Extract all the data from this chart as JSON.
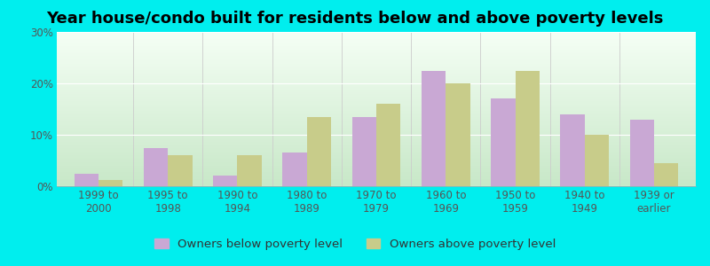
{
  "title": "Year house/condo built for residents below and above poverty levels",
  "categories": [
    "1999 to\n2000",
    "1995 to\n1998",
    "1990 to\n1994",
    "1980 to\n1989",
    "1970 to\n1979",
    "1960 to\n1969",
    "1950 to\n1959",
    "1940 to\n1949",
    "1939 or\nearlier"
  ],
  "below_poverty": [
    2.5,
    7.5,
    2.0,
    6.5,
    13.5,
    22.5,
    17.0,
    14.0,
    13.0
  ],
  "above_poverty": [
    1.2,
    6.0,
    6.0,
    13.5,
    16.0,
    20.0,
    22.5,
    10.0,
    4.5
  ],
  "below_color": "#c9a8d4",
  "above_color": "#c8cc8a",
  "background_color": "#00eeee",
  "plot_bg_top": "#f5fff5",
  "plot_bg_bottom": "#c8e8c8",
  "ylim": [
    0,
    30
  ],
  "yticks": [
    0,
    10,
    20,
    30
  ],
  "ytick_labels": [
    "0%",
    "10%",
    "20%",
    "30%"
  ],
  "legend_below": "Owners below poverty level",
  "legend_above": "Owners above poverty level",
  "title_fontsize": 13,
  "tick_fontsize": 8.5,
  "legend_fontsize": 9.5
}
